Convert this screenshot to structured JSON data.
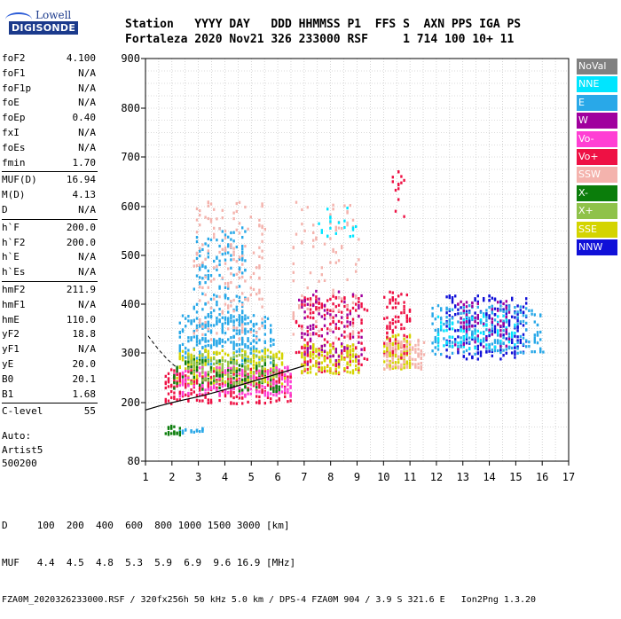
{
  "logo": {
    "line1": "Lowell",
    "line2": "DIGISONDE"
  },
  "header": {
    "labels": "Station   YYYY DAY   DDD HHMMSS P1  FFS S  AXN PPS IGA PS",
    "values": "Fortaleza 2020 Nov21 326 233000 RSF     1 714 100 10+ 11"
  },
  "params": {
    "g1": [
      {
        "k": "foF2",
        "v": "4.100"
      },
      {
        "k": "foF1",
        "v": "N/A"
      },
      {
        "k": "foF1p",
        "v": "N/A"
      },
      {
        "k": "foE",
        "v": "N/A"
      },
      {
        "k": "foEp",
        "v": "0.40"
      },
      {
        "k": "fxI",
        "v": "N/A"
      },
      {
        "k": "foEs",
        "v": "N/A"
      },
      {
        "k": "fmin",
        "v": "1.70"
      }
    ],
    "g2": [
      {
        "k": "MUF(D)",
        "v": "16.94"
      },
      {
        "k": "M(D)",
        "v": "4.13"
      },
      {
        "k": "D",
        "v": "N/A"
      }
    ],
    "g3": [
      {
        "k": "h`F",
        "v": "200.0"
      },
      {
        "k": "h`F2",
        "v": "200.0"
      },
      {
        "k": "h`E",
        "v": "N/A"
      },
      {
        "k": "h`Es",
        "v": "N/A"
      }
    ],
    "g4": [
      {
        "k": "hmF2",
        "v": "211.9"
      },
      {
        "k": "hmF1",
        "v": "N/A"
      },
      {
        "k": "hmE",
        "v": "110.0"
      },
      {
        "k": "yF2",
        "v": "18.8"
      },
      {
        "k": "yF1",
        "v": "N/A"
      },
      {
        "k": "yE",
        "v": "20.0"
      },
      {
        "k": "B0",
        "v": "20.1"
      },
      {
        "k": "B1",
        "v": "1.68"
      }
    ],
    "g5": [
      {
        "k": "C-level",
        "v": "55"
      }
    ]
  },
  "auto": {
    "l1": "Auto:",
    "l2": "Artist5",
    "l3": "500200"
  },
  "legend": [
    {
      "name": "NoVal",
      "color": "#808080"
    },
    {
      "name": "NNE",
      "color": "#00e5ff"
    },
    {
      "name": "E",
      "color": "#29a8e8"
    },
    {
      "name": "W",
      "color": "#a0009e"
    },
    {
      "name": "Vo-",
      "color": "#ff3fd4"
    },
    {
      "name": "Vo+",
      "color": "#ee1144"
    },
    {
      "name": "SSW",
      "color": "#f4b3ad"
    },
    {
      "name": "X-",
      "color": "#0b7d0b"
    },
    {
      "name": "X+",
      "color": "#8fc24a"
    },
    {
      "name": "SSE",
      "color": "#d4d400"
    },
    {
      "name": "NNW",
      "color": "#1010d8"
    }
  ],
  "footer": {
    "l1": "D     100  200  400  600  800 1000 1500 3000 [km]",
    "l2": "MUF   4.4  4.5  4.8  5.3  5.9  6.9  9.6 16.9 [MHz]",
    "l3": "FZA0M_2020326233000.RSF / 320fx256h 50 kHz 5.0 km / DPS-4 FZA0M 904 / 3.9 S 321.6 E   Ion2Png 1.3.20"
  },
  "chart_data": {
    "type": "scatter",
    "title": "",
    "xlabel": "",
    "ylabel": "",
    "xlim": [
      1,
      17
    ],
    "ylim": [
      80,
      900
    ],
    "xticks": [
      1,
      2,
      3,
      4,
      5,
      6,
      7,
      8,
      9,
      10,
      11,
      12,
      13,
      14,
      15,
      16,
      17
    ],
    "yticks": [
      80,
      200,
      300,
      400,
      500,
      600,
      700,
      800,
      900
    ],
    "grid": true,
    "legend_position": "right",
    "clusters": [
      {
        "series": "E",
        "x": [
          2.2,
          5.8
        ],
        "y": [
          280,
          380
        ],
        "n": 260
      },
      {
        "series": "E",
        "x": [
          2.8,
          4.8
        ],
        "y": [
          320,
          560
        ],
        "n": 180
      },
      {
        "series": "SSW",
        "x": [
          2.8,
          5.5
        ],
        "y": [
          330,
          620
        ],
        "n": 160
      },
      {
        "series": "SSE",
        "x": [
          2.1,
          6.2
        ],
        "y": [
          240,
          310
        ],
        "n": 260
      },
      {
        "series": "Vo+",
        "x": [
          1.7,
          6.5
        ],
        "y": [
          200,
          270
        ],
        "n": 260
      },
      {
        "series": "Vo-",
        "x": [
          2.0,
          6.5
        ],
        "y": [
          215,
          275
        ],
        "n": 180
      },
      {
        "series": "X-",
        "x": [
          2.0,
          6.0
        ],
        "y": [
          225,
          290
        ],
        "n": 120
      },
      {
        "series": "X+",
        "x": [
          2.5,
          6.0
        ],
        "y": [
          240,
          300
        ],
        "n": 100
      },
      {
        "series": "Vo+",
        "x": [
          6.7,
          9.3
        ],
        "y": [
          260,
          420
        ],
        "n": 200
      },
      {
        "series": "SSE",
        "x": [
          6.8,
          9.0
        ],
        "y": [
          260,
          320
        ],
        "n": 140
      },
      {
        "series": "W",
        "x": [
          6.8,
          9.2
        ],
        "y": [
          280,
          430
        ],
        "n": 90
      },
      {
        "series": "SSW",
        "x": [
          6.5,
          9.0
        ],
        "y": [
          330,
          620
        ],
        "n": 90
      },
      {
        "series": "NNE",
        "x": [
          7.5,
          9.0
        ],
        "y": [
          540,
          600
        ],
        "n": 20
      },
      {
        "series": "SSE",
        "x": [
          10.0,
          11.0
        ],
        "y": [
          270,
          340
        ],
        "n": 120
      },
      {
        "series": "Vo+",
        "x": [
          10.0,
          11.0
        ],
        "y": [
          290,
          430
        ],
        "n": 80
      },
      {
        "series": "SSW",
        "x": [
          10.0,
          11.5
        ],
        "y": [
          270,
          330
        ],
        "n": 90
      },
      {
        "series": "Vo+",
        "x": [
          10.3,
          10.8
        ],
        "y": [
          580,
          680
        ],
        "n": 14
      },
      {
        "series": "NNW",
        "x": [
          12.3,
          15.4
        ],
        "y": [
          290,
          420
        ],
        "n": 200
      },
      {
        "series": "E",
        "x": [
          11.8,
          16.0
        ],
        "y": [
          300,
          400
        ],
        "n": 200
      },
      {
        "series": "NNE",
        "x": [
          12.0,
          15.0
        ],
        "y": [
          310,
          380
        ],
        "n": 80
      },
      {
        "series": "W",
        "x": [
          12.5,
          14.8
        ],
        "y": [
          310,
          410
        ],
        "n": 60
      },
      {
        "series": "E",
        "x": [
          2.0,
          3.2
        ],
        "y": [
          140,
          150
        ],
        "n": 20
      },
      {
        "series": "X-",
        "x": [
          1.7,
          2.3
        ],
        "y": [
          135,
          155
        ],
        "n": 18
      }
    ],
    "trace": {
      "x": [
        1.0,
        1.5,
        2.0,
        2.5,
        3.0,
        3.5,
        4.0,
        4.5,
        5.0,
        5.5,
        6.0,
        6.5,
        7.0
      ],
      "y": [
        185,
        193,
        200,
        206,
        212,
        219,
        226,
        234,
        242,
        250,
        258,
        266,
        274
      ]
    }
  }
}
